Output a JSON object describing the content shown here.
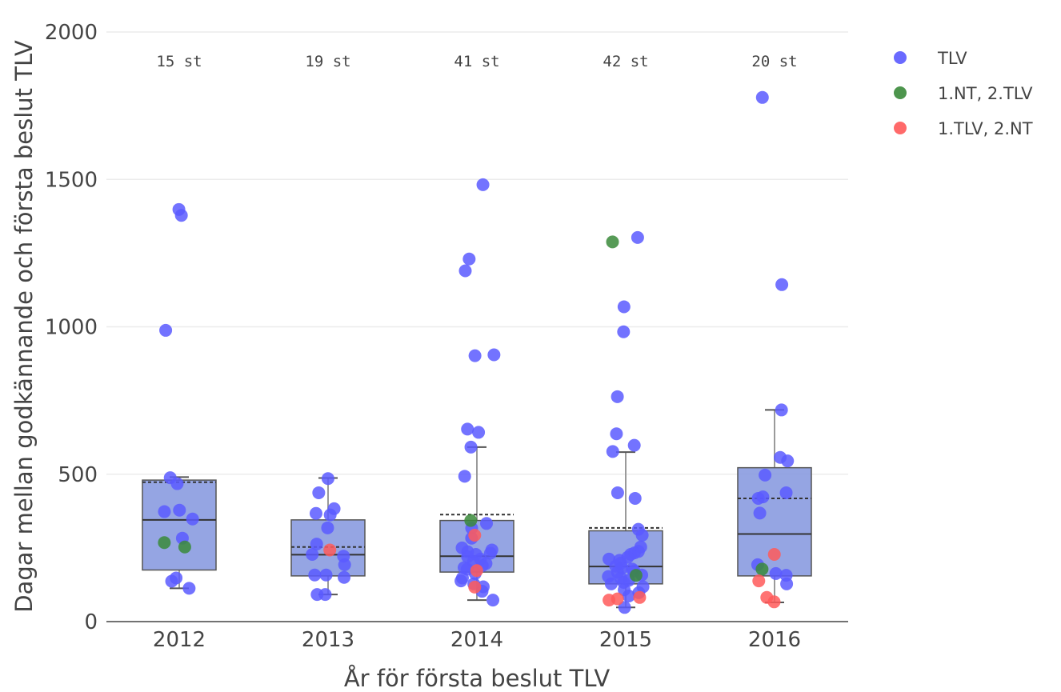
{
  "chart_data": {
    "type": "box",
    "xlabel": "År för första beslut TLV",
    "ylabel": "Dagar mellan godkännande och första beslut TLV",
    "categories": [
      "2012",
      "2013",
      "2014",
      "2015",
      "2016"
    ],
    "ylim": [
      0,
      2000
    ],
    "yticks": [
      0,
      500,
      1000,
      1500,
      2000
    ],
    "grid": true,
    "legend_position": "top-right",
    "annotations": [
      {
        "category": "2012",
        "text": "15 st"
      },
      {
        "category": "2013",
        "text": "19 st"
      },
      {
        "category": "2014",
        "text": "41 st"
      },
      {
        "category": "2015",
        "text": "42 st"
      },
      {
        "category": "2016",
        "text": "20 st"
      }
    ],
    "boxes": [
      {
        "category": "2012",
        "q1": 175,
        "median": 345,
        "q3": 480,
        "lower_whisker": 113,
        "upper_whisker": 490,
        "mean": 473
      },
      {
        "category": "2013",
        "q1": 155,
        "median": 227,
        "q3": 345,
        "lower_whisker": 92,
        "upper_whisker": 487,
        "mean": 253
      },
      {
        "category": "2014",
        "q1": 168,
        "median": 222,
        "q3": 343,
        "lower_whisker": 73,
        "upper_whisker": 592,
        "mean": 363
      },
      {
        "category": "2015",
        "q1": 128,
        "median": 187,
        "q3": 308,
        "lower_whisker": 48,
        "upper_whisker": 575,
        "mean": 318
      },
      {
        "category": "2016",
        "q1": 155,
        "median": 297,
        "q3": 522,
        "lower_whisker": 65,
        "upper_whisker": 718,
        "mean": 418
      }
    ],
    "series": [
      {
        "name": "TLV",
        "color": "#5a5aff"
      },
      {
        "name": "1.NT, 2.TLV",
        "color": "#3a8a3a"
      },
      {
        "name": "1.TLV, 2.NT",
        "color": "#ff5a5a"
      }
    ],
    "points": [
      {
        "category": "2012",
        "series": "TLV",
        "values": [
          1398,
          1378,
          988,
          488,
          468,
          378,
          373,
          348,
          283,
          148,
          137,
          113
        ]
      },
      {
        "category": "2012",
        "series": "1.NT, 2.TLV",
        "values": [
          253,
          268
        ]
      },
      {
        "category": "2013",
        "series": "TLV",
        "values": [
          485,
          437,
          383,
          367,
          362,
          318,
          263,
          228,
          222,
          193,
          158,
          158,
          150,
          92,
          92
        ]
      },
      {
        "category": "2013",
        "series": "1.TLV, 2.NT",
        "values": [
          243
        ]
      },
      {
        "category": "2014",
        "series": "TLV",
        "values": [
          1482,
          1230,
          1190,
          905,
          902,
          653,
          642,
          592,
          493,
          333,
          317,
          283,
          250,
          243,
          237,
          232,
          228,
          220,
          212,
          203,
          197,
          190,
          183,
          178,
          163,
          148,
          138,
          128,
          118,
          103,
          73
        ]
      },
      {
        "category": "2014",
        "series": "1.NT, 2.TLV",
        "values": [
          343
        ]
      },
      {
        "category": "2014",
        "series": "1.TLV, 2.NT",
        "values": [
          293,
          173,
          117
        ]
      },
      {
        "category": "2015",
        "series": "TLV",
        "values": [
          1303,
          1068,
          983,
          763,
          637,
          598,
          577,
          437,
          418,
          313,
          293,
          253,
          238,
          233,
          228,
          218,
          212,
          208,
          198,
          188,
          182,
          178,
          172,
          167,
          158,
          153,
          148,
          140,
          133,
          128,
          118,
          108,
          98,
          87,
          48
        ]
      },
      {
        "category": "2015",
        "series": "1.NT, 2.TLV",
        "values": [
          1288,
          157
        ]
      },
      {
        "category": "2015",
        "series": "1.TLV, 2.NT",
        "values": [
          82,
          77,
          73
        ]
      },
      {
        "category": "2016",
        "series": "TLV",
        "values": [
          1778,
          1143,
          718,
          557,
          545,
          497,
          437,
          423,
          418,
          368,
          193,
          163,
          157,
          128
        ]
      },
      {
        "category": "2016",
        "series": "1.NT, 2.TLV",
        "values": [
          178
        ]
      },
      {
        "category": "2016",
        "series": "1.TLV, 2.NT",
        "values": [
          228,
          138,
          82,
          67
        ]
      }
    ]
  }
}
